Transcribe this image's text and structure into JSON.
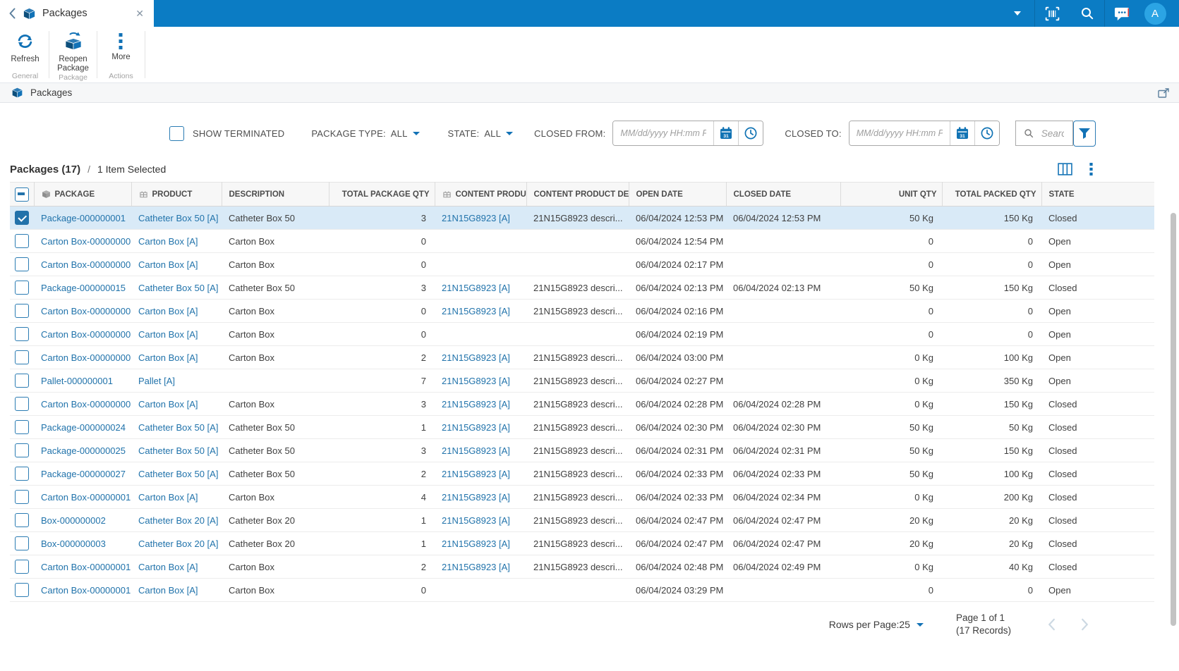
{
  "colors": {
    "topbar_blue": "#0b7cc4",
    "accent_blue": "#1272b6",
    "avatar_blue": "#2ba4e4",
    "link_blue": "#2173ab",
    "selected_row_bg": "#d9eaf7",
    "notification_red": "#e23b3b"
  },
  "topbar": {
    "tab_title": "Packages",
    "avatar_initial": "A",
    "icons": [
      "back-icon",
      "package-icon",
      "close-icon",
      "chevron-down-icon",
      "barcode-icon",
      "search-icon",
      "chat-icon",
      "avatar"
    ]
  },
  "toolbar": {
    "buttons": [
      {
        "label": "Refresh",
        "group": "General",
        "icon": "refresh-icon"
      },
      {
        "label": "Reopen Package",
        "group": "Package",
        "icon": "reopen-package-icon"
      },
      {
        "label": "More",
        "group": "Actions",
        "icon": "more-vertical-icon"
      }
    ]
  },
  "breadcrumb": {
    "title": "Packages",
    "icon": "package-icon"
  },
  "filters": {
    "show_terminated_label": "SHOW TERMINATED",
    "show_terminated_checked": false,
    "package_type_label": "PACKAGE TYPE:",
    "package_type_value": "ALL",
    "state_label": "STATE:",
    "state_value": "ALL",
    "closed_from_label": "CLOSED FROM:",
    "closed_to_label": "CLOSED TO:",
    "date_placeholder": "MM/dd/yyyy HH:mm PP",
    "date_from_value": "",
    "date_to_value": "",
    "search_placeholder": "Search",
    "search_value": ""
  },
  "grid": {
    "title": "Packages (17)",
    "separator": "/",
    "selection_text": "1 Item Selected",
    "columns": [
      {
        "key": "package",
        "label": "PACKAGE",
        "icon": "package-icon",
        "align": "left",
        "link": true
      },
      {
        "key": "product",
        "label": "PRODUCT",
        "icon": "product-icon",
        "align": "left",
        "link": true
      },
      {
        "key": "description",
        "label": "DESCRIPTION",
        "align": "left",
        "link": false
      },
      {
        "key": "total_package_qty",
        "label": "TOTAL PACKAGE QTY",
        "align": "right",
        "link": false
      },
      {
        "key": "content_product",
        "label": "CONTENT PRODUCT",
        "icon": "product-icon",
        "align": "left",
        "link": true
      },
      {
        "key": "content_product_desc",
        "label": "CONTENT PRODUCT DE...",
        "align": "left",
        "link": false
      },
      {
        "key": "open_date",
        "label": "OPEN DATE",
        "align": "left",
        "link": false
      },
      {
        "key": "closed_date",
        "label": "CLOSED DATE",
        "align": "left",
        "link": false
      },
      {
        "key": "unit_qty",
        "label": "UNIT QTY",
        "align": "right",
        "link": false
      },
      {
        "key": "total_packed_qty",
        "label": "TOTAL PACKED QTY",
        "align": "right",
        "link": false
      },
      {
        "key": "state",
        "label": "STATE",
        "align": "left",
        "link": false
      }
    ],
    "rows": [
      {
        "selected": true,
        "cells": {
          "package": "Package-000000001",
          "product": "Catheter Box 50 [A]",
          "description": "Catheter Box 50",
          "total_package_qty": "3",
          "content_product": "21N15G8923 [A]",
          "content_product_desc": "21N15G8923 descri...",
          "open_date": "06/04/2024 12:53 PM",
          "closed_date": "06/04/2024 12:53 PM",
          "unit_qty": "50 Kg",
          "total_packed_qty": "150 Kg",
          "state": "Closed"
        }
      },
      {
        "selected": false,
        "cells": {
          "package": "Carton Box-00000000",
          "product": "Carton Box [A]",
          "description": "Carton Box",
          "total_package_qty": "0",
          "content_product": "",
          "content_product_desc": "",
          "open_date": "06/04/2024 12:54 PM",
          "closed_date": "",
          "unit_qty": "0",
          "total_packed_qty": "0",
          "state": "Open"
        }
      },
      {
        "selected": false,
        "cells": {
          "package": "Carton Box-00000000",
          "product": "Carton Box [A]",
          "description": "Carton Box",
          "total_package_qty": "0",
          "content_product": "",
          "content_product_desc": "",
          "open_date": "06/04/2024 02:17 PM",
          "closed_date": "",
          "unit_qty": "0",
          "total_packed_qty": "0",
          "state": "Open"
        }
      },
      {
        "selected": false,
        "cells": {
          "package": "Package-000000015",
          "product": "Catheter Box 50 [A]",
          "description": "Catheter Box 50",
          "total_package_qty": "3",
          "content_product": "21N15G8923 [A]",
          "content_product_desc": "21N15G8923 descri...",
          "open_date": "06/04/2024 02:13 PM",
          "closed_date": "06/04/2024 02:13 PM",
          "unit_qty": "50 Kg",
          "total_packed_qty": "150 Kg",
          "state": "Closed"
        }
      },
      {
        "selected": false,
        "cells": {
          "package": "Carton Box-00000000",
          "product": "Carton Box [A]",
          "description": "Carton Box",
          "total_package_qty": "0",
          "content_product": "21N15G8923 [A]",
          "content_product_desc": "21N15G8923 descri...",
          "open_date": "06/04/2024 02:16 PM",
          "closed_date": "",
          "unit_qty": "0",
          "total_packed_qty": "0",
          "state": "Open"
        }
      },
      {
        "selected": false,
        "cells": {
          "package": "Carton Box-00000000",
          "product": "Carton Box [A]",
          "description": "Carton Box",
          "total_package_qty": "0",
          "content_product": "",
          "content_product_desc": "",
          "open_date": "06/04/2024 02:19 PM",
          "closed_date": "",
          "unit_qty": "0",
          "total_packed_qty": "0",
          "state": "Open"
        }
      },
      {
        "selected": false,
        "cells": {
          "package": "Carton Box-00000000",
          "product": "Carton Box [A]",
          "description": "Carton Box",
          "total_package_qty": "2",
          "content_product": "21N15G8923 [A]",
          "content_product_desc": "21N15G8923 descri...",
          "open_date": "06/04/2024 03:00 PM",
          "closed_date": "",
          "unit_qty": "0 Kg",
          "total_packed_qty": "100 Kg",
          "state": "Open"
        }
      },
      {
        "selected": false,
        "cells": {
          "package": "Pallet-000000001",
          "product": "Pallet [A]",
          "description": "",
          "total_package_qty": "7",
          "content_product": "21N15G8923 [A]",
          "content_product_desc": "21N15G8923 descri...",
          "open_date": "06/04/2024 02:27 PM",
          "closed_date": "",
          "unit_qty": "0 Kg",
          "total_packed_qty": "350 Kg",
          "state": "Open"
        }
      },
      {
        "selected": false,
        "cells": {
          "package": "Carton Box-00000000",
          "product": "Carton Box [A]",
          "description": "Carton Box",
          "total_package_qty": "3",
          "content_product": "21N15G8923 [A]",
          "content_product_desc": "21N15G8923 descri...",
          "open_date": "06/04/2024 02:28 PM",
          "closed_date": "06/04/2024 02:28 PM",
          "unit_qty": "0 Kg",
          "total_packed_qty": "150 Kg",
          "state": "Closed"
        }
      },
      {
        "selected": false,
        "cells": {
          "package": "Package-000000024",
          "product": "Catheter Box 50 [A]",
          "description": "Catheter Box 50",
          "total_package_qty": "1",
          "content_product": "21N15G8923 [A]",
          "content_product_desc": "21N15G8923 descri...",
          "open_date": "06/04/2024 02:30 PM",
          "closed_date": "06/04/2024 02:30 PM",
          "unit_qty": "50 Kg",
          "total_packed_qty": "50 Kg",
          "state": "Closed"
        }
      },
      {
        "selected": false,
        "cells": {
          "package": "Package-000000025",
          "product": "Catheter Box 50 [A]",
          "description": "Catheter Box 50",
          "total_package_qty": "3",
          "content_product": "21N15G8923 [A]",
          "content_product_desc": "21N15G8923 descri...",
          "open_date": "06/04/2024 02:31 PM",
          "closed_date": "06/04/2024 02:31 PM",
          "unit_qty": "50 Kg",
          "total_packed_qty": "150 Kg",
          "state": "Closed"
        }
      },
      {
        "selected": false,
        "cells": {
          "package": "Package-000000027",
          "product": "Catheter Box 50 [A]",
          "description": "Catheter Box 50",
          "total_package_qty": "2",
          "content_product": "21N15G8923 [A]",
          "content_product_desc": "21N15G8923 descri...",
          "open_date": "06/04/2024 02:33 PM",
          "closed_date": "06/04/2024 02:33 PM",
          "unit_qty": "50 Kg",
          "total_packed_qty": "100 Kg",
          "state": "Closed"
        }
      },
      {
        "selected": false,
        "cells": {
          "package": "Carton Box-00000001",
          "product": "Carton Box [A]",
          "description": "Carton Box",
          "total_package_qty": "4",
          "content_product": "21N15G8923 [A]",
          "content_product_desc": "21N15G8923 descri...",
          "open_date": "06/04/2024 02:33 PM",
          "closed_date": "06/04/2024 02:34 PM",
          "unit_qty": "0 Kg",
          "total_packed_qty": "200 Kg",
          "state": "Closed"
        }
      },
      {
        "selected": false,
        "cells": {
          "package": "Box-000000002",
          "product": "Catheter Box 20 [A]",
          "description": "Catheter Box 20",
          "total_package_qty": "1",
          "content_product": "21N15G8923 [A]",
          "content_product_desc": "21N15G8923 descri...",
          "open_date": "06/04/2024 02:47 PM",
          "closed_date": "06/04/2024 02:47 PM",
          "unit_qty": "20 Kg",
          "total_packed_qty": "20 Kg",
          "state": "Closed"
        }
      },
      {
        "selected": false,
        "cells": {
          "package": "Box-000000003",
          "product": "Catheter Box 20 [A]",
          "description": "Catheter Box 20",
          "total_package_qty": "1",
          "content_product": "21N15G8923 [A]",
          "content_product_desc": "21N15G8923 descri...",
          "open_date": "06/04/2024 02:47 PM",
          "closed_date": "06/04/2024 02:47 PM",
          "unit_qty": "20 Kg",
          "total_packed_qty": "20 Kg",
          "state": "Closed"
        }
      },
      {
        "selected": false,
        "cells": {
          "package": "Carton Box-00000001",
          "product": "Carton Box [A]",
          "description": "Carton Box",
          "total_package_qty": "2",
          "content_product": "21N15G8923 [A]",
          "content_product_desc": "21N15G8923 descri...",
          "open_date": "06/04/2024 02:48 PM",
          "closed_date": "06/04/2024 02:49 PM",
          "unit_qty": "0 Kg",
          "total_packed_qty": "40 Kg",
          "state": "Closed"
        }
      },
      {
        "selected": false,
        "cells": {
          "package": "Carton Box-00000001",
          "product": "Carton Box [A]",
          "description": "Carton Box",
          "total_package_qty": "0",
          "content_product": "",
          "content_product_desc": "",
          "open_date": "06/04/2024 03:29 PM",
          "closed_date": "",
          "unit_qty": "0",
          "total_packed_qty": "0",
          "state": "Open"
        }
      }
    ]
  },
  "footer": {
    "rows_per_page_label": "Rows per Page:",
    "rows_per_page_value": "25",
    "page_info": "Page 1 of 1",
    "records_info": "(17 Records)"
  }
}
